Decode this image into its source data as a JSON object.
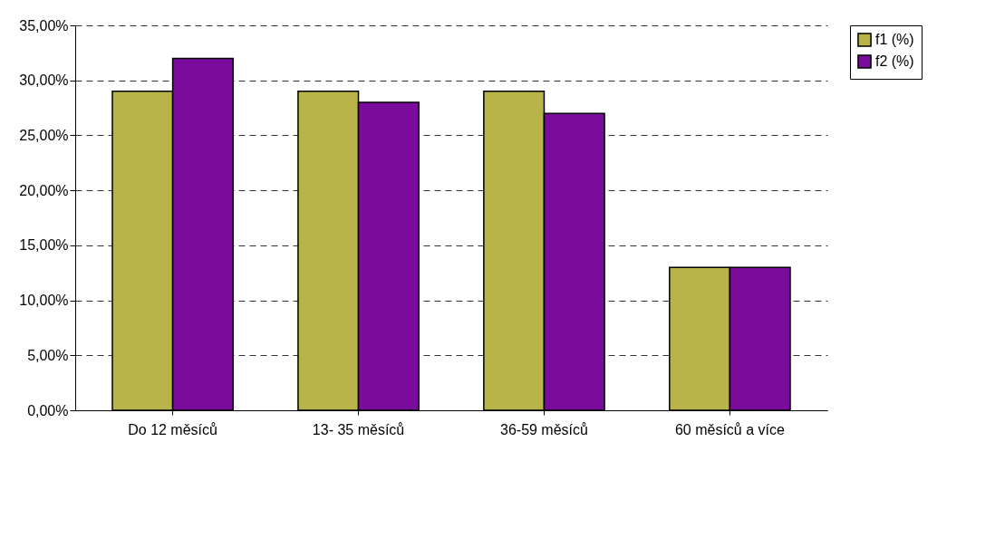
{
  "chart_data": {
    "type": "bar",
    "categories": [
      "Do 12 měsíců",
      "13- 35 měsíců",
      "36-59 měsíců",
      "60 měsíců a více"
    ],
    "series": [
      {
        "name": "f1 (%)",
        "color": "#b8b44a",
        "values": [
          29,
          29,
          29,
          13
        ]
      },
      {
        "name": "f2 (%)",
        "color": "#7a0c9c",
        "values": [
          32,
          28,
          27,
          13
        ]
      }
    ],
    "ylim": [
      0,
      35
    ],
    "yticks": [
      {
        "value": 0,
        "label": "0,00%"
      },
      {
        "value": 5,
        "label": "5,00%"
      },
      {
        "value": 10,
        "label": "10,00%"
      },
      {
        "value": 15,
        "label": "15,00%"
      },
      {
        "value": 20,
        "label": "20,00%"
      },
      {
        "value": 25,
        "label": "25,00%"
      },
      {
        "value": 30,
        "label": "30,00%"
      },
      {
        "value": 35,
        "label": "35,00%"
      }
    ],
    "grid": "y",
    "legend": "right"
  }
}
